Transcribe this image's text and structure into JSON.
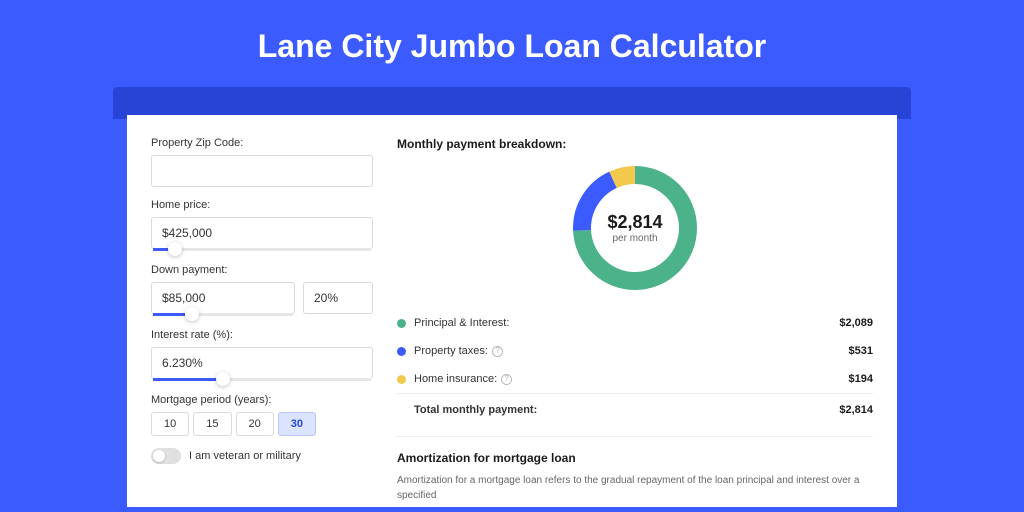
{
  "page": {
    "title": "Lane City Jumbo Loan Calculator",
    "background_color": "#3b5bff",
    "header_strip_color": "#2744d6",
    "card_bg": "#ffffff"
  },
  "form": {
    "zip": {
      "label": "Property Zip Code:",
      "value": ""
    },
    "home_price": {
      "label": "Home price:",
      "value": "$425,000",
      "slider_pct": 10
    },
    "down_payment": {
      "label": "Down payment:",
      "value": "$85,000",
      "pct_value": "20%",
      "slider_pct": 28
    },
    "interest_rate": {
      "label": "Interest rate (%):",
      "value": "6.230%",
      "slider_pct": 32
    },
    "mortgage_period": {
      "label": "Mortgage period (years):",
      "options": [
        "10",
        "15",
        "20",
        "30"
      ],
      "selected_index": 3
    },
    "veteran": {
      "label": "I am veteran or military",
      "enabled": false
    }
  },
  "breakdown": {
    "title": "Monthly payment breakdown:",
    "donut": {
      "center_amount": "$2,814",
      "center_sub": "per month",
      "slices": [
        {
          "label": "Principal & Interest:",
          "value_label": "$2,089",
          "pct": 74.2,
          "color": "#4bb28a"
        },
        {
          "label": "Property taxes:",
          "value_label": "$531",
          "pct": 18.9,
          "color": "#3b5bff"
        },
        {
          "label": "Home insurance:",
          "value_label": "$194",
          "pct": 6.9,
          "color": "#f2c94c"
        }
      ],
      "total_label": "Total monthly payment:",
      "total_value": "$2,814",
      "thickness": 18
    }
  },
  "amortization": {
    "title": "Amortization for mortgage loan",
    "text": "Amortization for a mortgage loan refers to the gradual repayment of the loan principal and interest over a specified"
  }
}
